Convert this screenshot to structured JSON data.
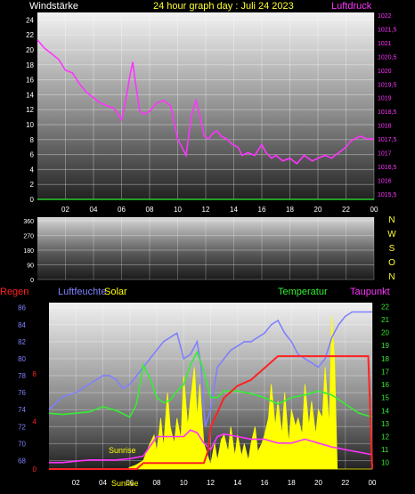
{
  "colors": {
    "background": "#000000",
    "wind_axis": "#ffffff",
    "pressure": "#ff33ff",
    "title": "#ffff33",
    "rain": "#ff2222",
    "humidity": "#8080ff",
    "solar": "#ffff00",
    "temperature": "#33ee33",
    "dewpoint": "#ff33ff",
    "wind_line": "#33ee33"
  },
  "chart_data": [
    {
      "type": "line",
      "title": "24 hour graph day : Juli 24 2023",
      "left_label": "Windstärke",
      "right_label": "Luftdruck",
      "x_ticks": [
        "02",
        "04",
        "06",
        "08",
        "10",
        "12",
        "14",
        "16",
        "18",
        "20",
        "22",
        "00"
      ],
      "x_range": [
        0,
        24
      ],
      "y_left_ticks": [
        "0",
        "2",
        "4",
        "6",
        "8",
        "10",
        "12",
        "14",
        "16",
        "18",
        "20",
        "22",
        "24"
      ],
      "y_left_range": [
        0,
        25
      ],
      "y_right_ticks": [
        "1015,5",
        "1016",
        "1016,5",
        "1017",
        "1017,5",
        "1018",
        "1018,5",
        "1019",
        "1019,5",
        "1020",
        "1020,5",
        "1021",
        "1021,5",
        "1022"
      ],
      "y_right_range": [
        1015.3,
        1022.1
      ],
      "grid": true,
      "series": [
        {
          "name": "Luftdruck",
          "axis": "right",
          "x": [
            0,
            0.5,
            1,
            1.5,
            2,
            2.5,
            3,
            3.5,
            4,
            4.5,
            5,
            5.5,
            6,
            6.3,
            6.6,
            6.8,
            7.0,
            7.3,
            7.6,
            8,
            8.5,
            9,
            9.5,
            10,
            10.3,
            10.6,
            11,
            11.3,
            11.6,
            11.9,
            12.2,
            12.5,
            12.8,
            13.1,
            13.5,
            13.9,
            14.3,
            14.6,
            15,
            15.5,
            16,
            16.3,
            16.7,
            17,
            17.5,
            18,
            18.5,
            19,
            19.3,
            19.6,
            20,
            20.5,
            21,
            21.2,
            21.5,
            22,
            22.3,
            22.6,
            23,
            23.5,
            24
          ],
          "y": [
            1021.1,
            1020.8,
            1020.6,
            1020.4,
            1020.0,
            1019.9,
            1019.5,
            1019.2,
            1019.0,
            1018.8,
            1018.7,
            1018.6,
            1018.2,
            1018.9,
            1019.8,
            1020.3,
            1019.5,
            1018.5,
            1018.4,
            1018.5,
            1018.8,
            1018.9,
            1018.7,
            1017.5,
            1017.2,
            1016.9,
            1018.4,
            1018.9,
            1018.3,
            1017.6,
            1017.5,
            1017.7,
            1017.8,
            1017.6,
            1017.5,
            1017.3,
            1017.2,
            1016.9,
            1017.0,
            1016.9,
            1017.3,
            1017.0,
            1016.8,
            1016.9,
            1016.7,
            1016.8,
            1016.6,
            1016.9,
            1016.8,
            1016.7,
            1016.8,
            1016.9,
            1016.8,
            1016.9,
            1017.0,
            1017.2,
            1017.4,
            1017.5,
            1017.6,
            1017.5,
            1017.5
          ]
        },
        {
          "name": "Windstärke",
          "axis": "left",
          "x": [
            0,
            24
          ],
          "y": [
            0,
            0
          ]
        }
      ]
    },
    {
      "type": "line",
      "right_labels": [
        "N",
        "W",
        "S",
        "O",
        "N"
      ],
      "x_range": [
        0,
        24
      ],
      "y_ticks": [
        "360",
        "270",
        "180",
        "90",
        "0"
      ],
      "y_range": [
        0,
        360
      ],
      "grid": true,
      "series": []
    },
    {
      "type": "line",
      "labels_top": {
        "rain": "Regen",
        "humidity": "Luftfeuchte",
        "solar": "Solar",
        "temperature": "Temperatur",
        "dewpoint": "Taupunkt"
      },
      "x_ticks": [
        "02",
        "04",
        "06",
        "08",
        "10",
        "12",
        "14",
        "16",
        "18",
        "20",
        "22",
        "00"
      ],
      "x_range": [
        0,
        24
      ],
      "y_left_ticks": [
        "68",
        "70",
        "72",
        "74",
        "76",
        "78",
        "80",
        "82",
        "84",
        "86"
      ],
      "y_left_range": [
        67,
        86.6
      ],
      "y_rain_ticks": [
        "0",
        "4",
        "8"
      ],
      "y_right_ticks": [
        "10",
        "11",
        "12",
        "13",
        "14",
        "15",
        "16",
        "17",
        "18",
        "19",
        "20",
        "21",
        "22"
      ],
      "y_right_range": [
        9.5,
        22.3
      ],
      "annotations": [
        "Sunrise",
        "Sunrise"
      ],
      "grid": true,
      "series": [
        {
          "name": "Luftfeuchte",
          "axis": "left",
          "x": [
            0,
            1,
            2,
            2.5,
            3,
            3.5,
            4,
            4.5,
            5,
            5.5,
            6,
            6.5,
            7,
            7.5,
            8,
            8.5,
            9,
            9.5,
            10,
            10.5,
            11,
            11.3,
            11.6,
            12,
            12.5,
            13,
            13.5,
            14,
            14.5,
            15,
            15.5,
            16,
            16.5,
            17,
            17.5,
            18,
            18.5,
            19,
            19.5,
            20,
            20.5,
            21,
            21.5,
            22,
            22.5,
            23,
            24
          ],
          "y": [
            74,
            75.5,
            76,
            76.5,
            77,
            77.5,
            78,
            78,
            77.5,
            76.5,
            77,
            78,
            79,
            80,
            81,
            82,
            82.5,
            83,
            80,
            80.5,
            82,
            79,
            72,
            74,
            79,
            80,
            81,
            81.5,
            82,
            82,
            82.5,
            83,
            84,
            84.5,
            83,
            82,
            80.5,
            80,
            79.5,
            79,
            80,
            82.5,
            84,
            85,
            85.5,
            85.5,
            85.5
          ]
        },
        {
          "name": "Temperatur",
          "axis": "right",
          "x": [
            0,
            1,
            2,
            3,
            4,
            5,
            6,
            6.5,
            7,
            7.5,
            8,
            8.5,
            9,
            9.5,
            10,
            10.5,
            11,
            11.5,
            12,
            12.5,
            13,
            14,
            15,
            16,
            17,
            18,
            19,
            20,
            21,
            22,
            23,
            24
          ],
          "y": [
            13.8,
            13.7,
            13.8,
            13.9,
            14.3,
            14.0,
            13.5,
            14.5,
            17.5,
            16.5,
            15.0,
            14.6,
            14.8,
            15.5,
            16.0,
            17.5,
            18.5,
            17.0,
            15.0,
            15.0,
            15.5,
            15.5,
            15.3,
            15.0,
            14.5,
            15.0,
            15.2,
            15.5,
            15.2,
            14.5,
            13.8,
            13.5
          ]
        },
        {
          "name": "Taupunkt",
          "axis": "right",
          "x": [
            0,
            1,
            2,
            3,
            4,
            5,
            6,
            7,
            8,
            9,
            10,
            10.5,
            11,
            11.5,
            12,
            12.5,
            13,
            14,
            15,
            16,
            17,
            18,
            19,
            20,
            21,
            22,
            23,
            24
          ],
          "y": [
            10,
            10,
            10.1,
            10.2,
            10.2,
            10.2,
            10.3,
            10.5,
            12.0,
            12.0,
            12.0,
            12.5,
            12.3,
            11.5,
            11.0,
            12.0,
            12.2,
            12.0,
            11.8,
            11.8,
            11.5,
            11.5,
            11.8,
            11.5,
            11.2,
            11.0,
            10.8,
            10.6
          ]
        },
        {
          "name": "Regen",
          "axis": "rain",
          "x": [
            0,
            6.5,
            7.0,
            7.5,
            8,
            9,
            10,
            11,
            11.5,
            11.8,
            12,
            13,
            14,
            15,
            16,
            17,
            18,
            19,
            20,
            21,
            22,
            23,
            23.7,
            24
          ],
          "y": [
            0,
            0,
            0.5,
            0.5,
            0.5,
            0.5,
            0.5,
            0.5,
            0.5,
            1.5,
            3.5,
            6,
            7,
            7.5,
            8.5,
            9.5,
            9.5,
            9.5,
            9.5,
            9.5,
            9.5,
            9.5,
            9.5,
            0
          ]
        },
        {
          "name": "Solar",
          "axis": "left",
          "x": [
            0,
            5.8,
            6.0,
            6.5,
            7,
            7.5,
            7.8,
            8,
            8.3,
            8.5,
            8.8,
            9,
            9.3,
            9.5,
            9.8,
            10,
            10.3,
            10.5,
            10.8,
            11,
            11.2,
            11.5,
            11.8,
            12,
            12.3,
            12.5,
            12.8,
            13,
            13.3,
            13.5,
            13.8,
            14,
            14.3,
            14.5,
            14.8,
            15,
            15.3,
            15.5,
            15.8,
            16,
            16.3,
            16.5,
            16.8,
            17,
            17.3,
            17.5,
            17.8,
            18,
            18.3,
            18.5,
            18.8,
            19,
            19.3,
            19.5,
            19.8,
            20,
            20.3,
            20.5,
            20.8,
            21,
            21.2,
            21.4,
            24
          ],
          "y": [
            67,
            67,
            67.2,
            67.5,
            68,
            70,
            71,
            69,
            73,
            69.5,
            76,
            72,
            70,
            73,
            70.5,
            78,
            72,
            75,
            79,
            73,
            77,
            70,
            68.5,
            67.5,
            70,
            68,
            70.5,
            71,
            69,
            72,
            68.5,
            71,
            68.5,
            70,
            68,
            70,
            72,
            69,
            70,
            71,
            73,
            77,
            72,
            75,
            71,
            76,
            70,
            74,
            72,
            73,
            71,
            77,
            72,
            75,
            71,
            74,
            73,
            79,
            72,
            85,
            80,
            67,
            67
          ]
        }
      ]
    }
  ]
}
